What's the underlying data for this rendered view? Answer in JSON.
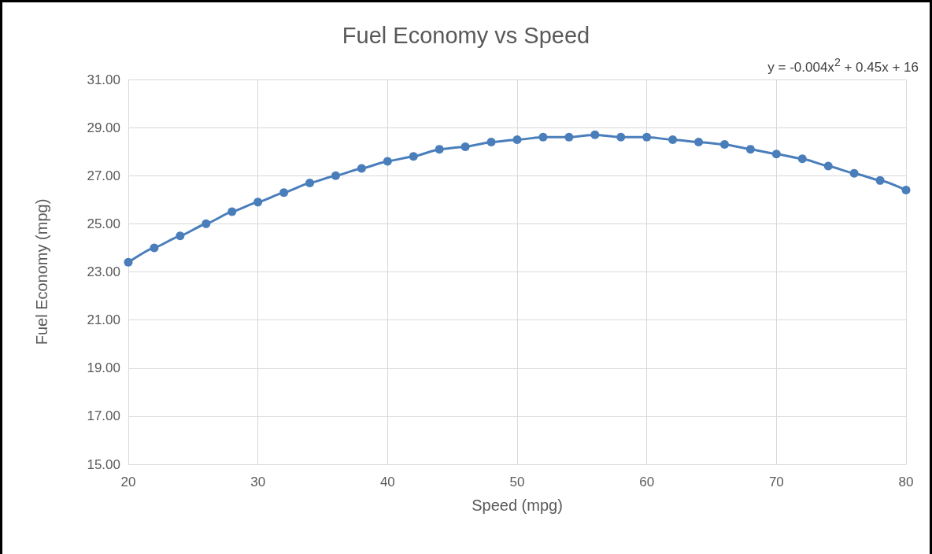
{
  "chart_data": {
    "type": "line",
    "title": "Fuel Economy vs Speed",
    "xlabel": "Speed (mpg)",
    "ylabel": "Fuel Economy (mpg)",
    "annotations": [
      "y = -0.004x$^{2}$ + 0.45x + 16"
    ],
    "x": [
      20,
      22,
      24,
      26,
      28,
      30,
      32,
      34,
      36,
      38,
      40,
      42,
      44,
      46,
      48,
      50,
      52,
      54,
      56,
      58,
      60,
      62,
      64,
      66,
      68,
      70,
      72,
      74,
      76,
      78,
      80
    ],
    "series": [
      {
        "color": "#4a7ebb",
        "values": [
          23.4,
          24.0,
          24.5,
          25.0,
          25.5,
          25.9,
          26.3,
          26.7,
          27.0,
          27.3,
          27.6,
          27.8,
          28.1,
          28.2,
          28.4,
          28.5,
          28.6,
          28.6,
          28.7,
          28.6,
          28.6,
          28.5,
          28.4,
          28.3,
          28.1,
          27.9,
          27.7,
          27.4,
          27.1,
          26.8,
          26.4
        ]
      }
    ],
    "xlim": [
      20,
      80
    ],
    "xticks": [
      20,
      30,
      40,
      50,
      60,
      70,
      80
    ],
    "ylim": [
      15,
      31
    ],
    "yticks": [
      {
        "value": 15,
        "label": "15.00"
      },
      {
        "value": 17,
        "label": "17.00"
      },
      {
        "value": 19,
        "label": "19.00"
      },
      {
        "value": 21,
        "label": "21.00"
      },
      {
        "value": 23,
        "label": "23.00"
      },
      {
        "value": 25,
        "label": "25.00"
      },
      {
        "value": 27,
        "label": "27.00"
      },
      {
        "value": 29,
        "label": "29.00"
      },
      {
        "value": 31,
        "label": "31.00"
      }
    ],
    "grid": true,
    "marker": "circle",
    "line_style": "solid"
  }
}
